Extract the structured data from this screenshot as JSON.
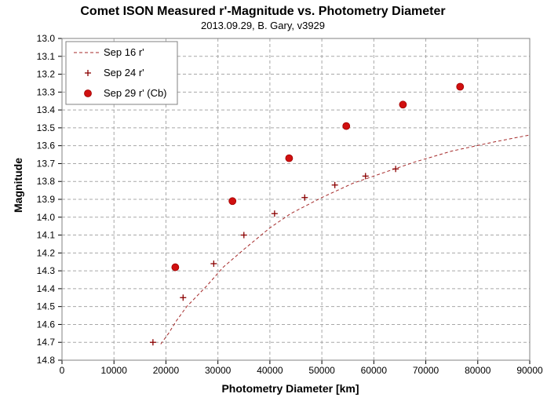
{
  "chart_data": {
    "type": "scatter",
    "title": "Comet ISON Measured r'-Magnitude  vs. Photometry Diameter",
    "subtitle": "2013.09.29, B. Gary, v3929",
    "xlabel": "Photometry Diameter  [km]",
    "ylabel": "Magnitude",
    "xlim": [
      0,
      90000
    ],
    "ylim": [
      13.0,
      14.8
    ],
    "y_inverted": true,
    "grid": true,
    "legend_position": "top-left",
    "x_ticks": [
      "0",
      "10000",
      "20000",
      "30000",
      "40000",
      "50000",
      "60000",
      "70000",
      "80000",
      "90000"
    ],
    "y_ticks": [
      "13.0",
      "13.1",
      "13.2",
      "13.3",
      "13.4",
      "13.5",
      "13.6",
      "13.7",
      "13.8",
      "13.9",
      "14.0",
      "14.1",
      "14.2",
      "14.3",
      "14.4",
      "14.5",
      "14.6",
      "14.7",
      "14.8"
    ],
    "series": [
      {
        "name": "Sep 16 r'",
        "style": "dashed-line",
        "color": "#a52a2a",
        "x": [
          19000,
          20500,
          22000,
          24000,
          26000,
          28000,
          31000,
          35000,
          40000,
          44000,
          50000,
          56000,
          62000,
          68000,
          75000,
          83000,
          90000
        ],
        "y": [
          14.71,
          14.65,
          14.58,
          14.5,
          14.44,
          14.38,
          14.28,
          14.18,
          14.06,
          13.98,
          13.89,
          13.81,
          13.75,
          13.69,
          13.63,
          13.58,
          13.54
        ]
      },
      {
        "name": "Sep 24 r'",
        "style": "plus-marker",
        "color": "#8b0000",
        "x": [
          17500,
          23300,
          29200,
          35000,
          40900,
          46700,
          52500,
          58400,
          64200
        ],
        "y": [
          14.7,
          14.45,
          14.26,
          14.1,
          13.98,
          13.89,
          13.82,
          13.77,
          13.73
        ]
      },
      {
        "name": "Sep 29 r' (Cb)",
        "style": "filled-circle",
        "color": "#d01010",
        "x": [
          21800,
          32800,
          43700,
          54700,
          65600,
          76600
        ],
        "y": [
          14.28,
          13.91,
          13.67,
          13.49,
          13.37,
          13.27
        ]
      }
    ]
  }
}
